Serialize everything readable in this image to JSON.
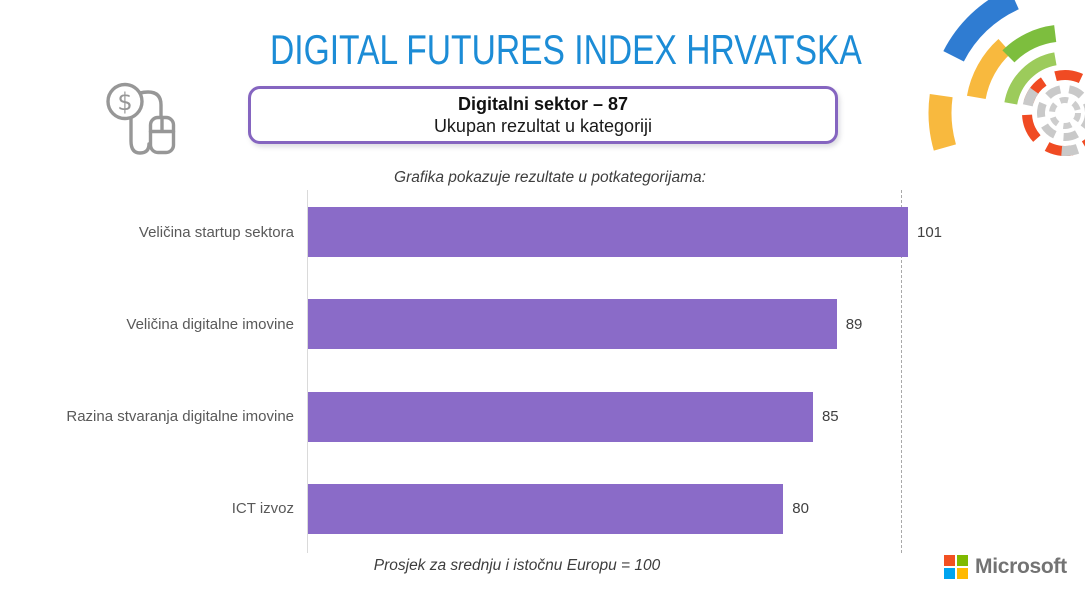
{
  "page": {
    "title": "DIGITAL FUTURES INDEX HRVATSKA",
    "category_box": {
      "title": "Digitalni sektor – 87",
      "subtitle": "Ukupan rezultat u kategoriji"
    },
    "chart_caption": "Grafika pokazuje rezultate u potkategorijama:",
    "footnote": "Prosjek za srednju i istočnu Europu = 100"
  },
  "branding": {
    "logo_text": "Microsoft",
    "logo_square_colors": [
      "#F25022",
      "#7FBA00",
      "#00A4EF",
      "#FFB900"
    ],
    "logo_text_color": "#737373"
  },
  "icons": {
    "money_mouse": "computer-mouse-with-dollar-coin-icon",
    "decorative": "concentric-dashed-arcs-graphic"
  },
  "colors": {
    "title_blue": "#1C8CD6",
    "bar_purple": "#8A6BC8",
    "box_border_purple": "#8565C0",
    "reference_line_gray": "#A9A9A9",
    "label_gray": "#595959"
  },
  "chart_data": {
    "type": "bar",
    "orientation": "horizontal",
    "title": "Grafika pokazuje rezultate u potkategorijama:",
    "categories": [
      "Veličina startup sektora",
      "Veličina digitalne imovine",
      "Razina stvaranja digitalne imovine",
      "ICT izvoz"
    ],
    "values": [
      101,
      89,
      85,
      80
    ],
    "value_labels_shown": true,
    "xlim": [
      0,
      105
    ],
    "reference_line": {
      "value": 100,
      "style": "dashed",
      "note": "Prosjek za srednju i istočnu Europu = 100"
    },
    "bar_color": "#8A6BC8",
    "legend": "none",
    "grid": "none"
  }
}
